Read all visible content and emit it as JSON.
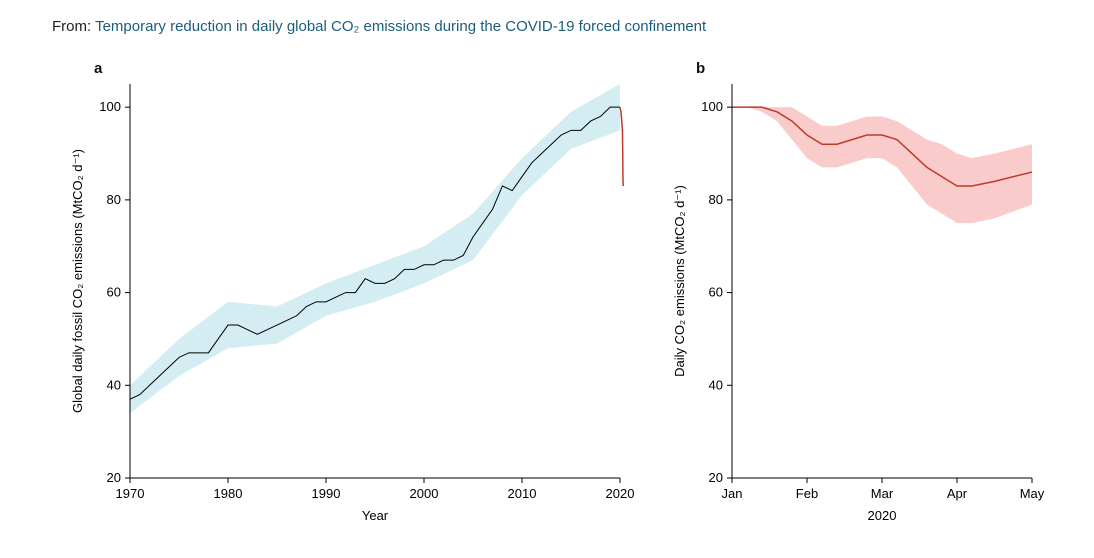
{
  "citation": {
    "from_label": "From: ",
    "title": "Temporary reduction in daily global CO₂ emissions during the COVID-19 forced confinement"
  },
  "chart_a": {
    "panel_label": "a",
    "type": "line",
    "title": "",
    "xlabel": "Year",
    "ylabel": "Global daily fossil CO₂ emissions (MtCO₂ d⁻¹)",
    "label_fontsize": 13,
    "tick_fontsize": 13,
    "xlim": [
      1970,
      2020
    ],
    "ylim": [
      20,
      105
    ],
    "xticks": [
      1970,
      1980,
      1990,
      2000,
      2010,
      2020
    ],
    "yticks": [
      20,
      40,
      60,
      80,
      100
    ],
    "background_color": "#ffffff",
    "grid": false,
    "axis_color": "#000000",
    "line_color_main": "#000000",
    "line_width_main": 1.0,
    "band_color": "#d4edf3",
    "band_opacity": 1.0,
    "line_color_drop": "#c0392b",
    "line_width_drop": 1.5,
    "series_main": {
      "x": [
        1970,
        1971,
        1972,
        1973,
        1974,
        1975,
        1976,
        1977,
        1978,
        1979,
        1980,
        1981,
        1982,
        1983,
        1984,
        1985,
        1986,
        1987,
        1988,
        1989,
        1990,
        1991,
        1992,
        1993,
        1994,
        1995,
        1996,
        1997,
        1998,
        1999,
        2000,
        2001,
        2002,
        2003,
        2004,
        2005,
        2006,
        2007,
        2008,
        2009,
        2010,
        2011,
        2012,
        2013,
        2014,
        2015,
        2016,
        2017,
        2018,
        2019,
        2020
      ],
      "y": [
        37,
        38,
        40,
        42,
        44,
        46,
        47,
        47,
        47,
        50,
        53,
        53,
        52,
        51,
        52,
        53,
        54,
        55,
        57,
        58,
        58,
        59,
        60,
        60,
        63,
        62,
        62,
        63,
        65,
        65,
        66,
        66,
        67,
        67,
        68,
        72,
        75,
        78,
        83,
        82,
        85,
        88,
        90,
        92,
        94,
        95,
        95,
        97,
        98,
        100,
        100
      ]
    },
    "series_band_lower": {
      "x": [
        1970,
        1975,
        1980,
        1985,
        1990,
        1995,
        2000,
        2005,
        2010,
        2015,
        2020
      ],
      "y": [
        34,
        42,
        48,
        49,
        55,
        58,
        62,
        67,
        81,
        91,
        95
      ]
    },
    "series_band_upper": {
      "x": [
        1970,
        1975,
        1980,
        1985,
        1990,
        1995,
        2000,
        2005,
        2010,
        2015,
        2020
      ],
      "y": [
        40,
        50,
        58,
        57,
        62,
        66,
        70,
        77,
        89,
        99,
        105
      ]
    },
    "series_drop": {
      "x": [
        2020,
        2020.1,
        2020.25,
        2020.28,
        2020.3,
        2020.33
      ],
      "y": [
        100,
        99,
        95,
        90,
        85,
        83
      ]
    }
  },
  "chart_b": {
    "panel_label": "b",
    "type": "line",
    "title": "",
    "xlabel": "2020",
    "ylabel": "Daily CO₂ emissions (MtCO₂ d⁻¹)",
    "label_fontsize": 13,
    "tick_fontsize": 13,
    "xlim": [
      0,
      4
    ],
    "ylim": [
      20,
      105
    ],
    "xticks": [
      0,
      1,
      2,
      3,
      4
    ],
    "xtick_labels": [
      "Jan",
      "Feb",
      "Mar",
      "Apr",
      "May"
    ],
    "yticks": [
      20,
      40,
      60,
      80,
      100
    ],
    "background_color": "#ffffff",
    "grid": false,
    "axis_color": "#000000",
    "line_color_main": "#c0392b",
    "line_width_main": 1.5,
    "band_color": "#f7b9b9",
    "band_opacity": 0.75,
    "series_main": {
      "x": [
        0,
        0.2,
        0.4,
        0.6,
        0.8,
        1.0,
        1.2,
        1.4,
        1.6,
        1.8,
        2.0,
        2.2,
        2.4,
        2.6,
        2.8,
        3.0,
        3.2,
        3.5,
        4.0
      ],
      "y": [
        100,
        100,
        100,
        99,
        97,
        94,
        92,
        92,
        93,
        94,
        94,
        93,
        90,
        87,
        85,
        83,
        83,
        84,
        86
      ]
    },
    "series_band_lower": {
      "x": [
        0,
        0.2,
        0.4,
        0.6,
        0.8,
        1.0,
        1.2,
        1.4,
        1.6,
        1.8,
        2.0,
        2.2,
        2.4,
        2.6,
        2.8,
        3.0,
        3.2,
        3.5,
        4.0
      ],
      "y": [
        100,
        100,
        99,
        97,
        93,
        89,
        87,
        87,
        88,
        89,
        89,
        87,
        83,
        79,
        77,
        75,
        75,
        76,
        79
      ]
    },
    "series_band_upper": {
      "x": [
        0,
        0.2,
        0.4,
        0.6,
        0.8,
        1.0,
        1.2,
        1.4,
        1.6,
        1.8,
        2.0,
        2.2,
        2.4,
        2.6,
        2.8,
        3.0,
        3.2,
        3.5,
        4.0
      ],
      "y": [
        100,
        100,
        100,
        100,
        100,
        98,
        96,
        96,
        97,
        98,
        98,
        97,
        95,
        93,
        92,
        90,
        89,
        90,
        92
      ]
    }
  }
}
